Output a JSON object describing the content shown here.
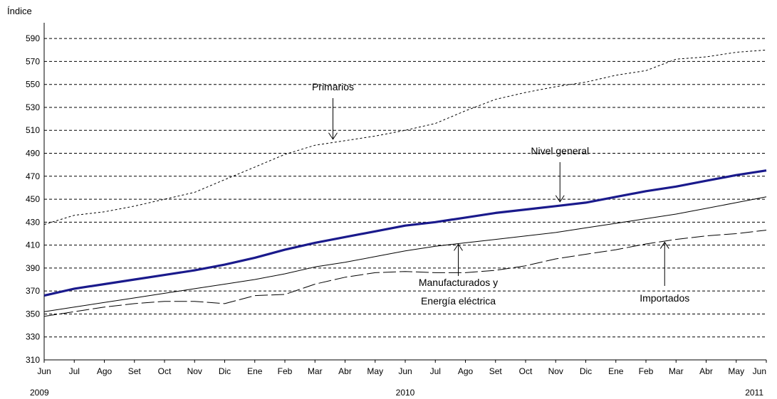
{
  "chart_data": {
    "type": "line",
    "ylabel": "Índice",
    "ylim": [
      310,
      600
    ],
    "yticks": [
      310,
      330,
      350,
      370,
      390,
      410,
      430,
      450,
      470,
      490,
      510,
      530,
      550,
      570,
      590
    ],
    "grid": "horizontal dashed",
    "x": [
      "Jun",
      "Jul",
      "Ago",
      "Set",
      "Oct",
      "Nov",
      "Dic",
      "Ene",
      "Feb",
      "Mar",
      "Abr",
      "May",
      "Jun",
      "Jul",
      "Ago",
      "Set",
      "Oct",
      "Nov",
      "Dic",
      "Ene",
      "Feb",
      "Mar",
      "Abr",
      "May",
      "Jun"
    ],
    "years": [
      {
        "label": "2009",
        "index": 0
      },
      {
        "label": "2010",
        "index": 12
      },
      {
        "label": "2011",
        "index": 24
      }
    ],
    "series": [
      {
        "name": "Primarios",
        "color": "#000000",
        "style": "dotted",
        "values": [
          428,
          436,
          439,
          444,
          450,
          456,
          467,
          478,
          489,
          497,
          501,
          505,
          510,
          516,
          527,
          537,
          543,
          548,
          552,
          558,
          562,
          572,
          574,
          578,
          580
        ]
      },
      {
        "name": "Nivel general",
        "color": "#1a1a8c",
        "style": "thick",
        "values": [
          366,
          372,
          376,
          380,
          384,
          388,
          393,
          399,
          406,
          412,
          417,
          422,
          427,
          430,
          434,
          438,
          441,
          444,
          447,
          452,
          457,
          461,
          466,
          471,
          475
        ]
      },
      {
        "name": "Manufacturados y Energía eléctrica",
        "color": "#000000",
        "style": "solid",
        "values": [
          352,
          356,
          360,
          364,
          368,
          372,
          376,
          380,
          385,
          391,
          395,
          400,
          405,
          409,
          412,
          415,
          418,
          421,
          425,
          429,
          433,
          437,
          442,
          447,
          452
        ]
      },
      {
        "name": "Importados",
        "color": "#000000",
        "style": "longdash",
        "values": [
          348,
          352,
          356,
          359,
          361,
          361,
          359,
          366,
          367,
          376,
          382,
          386,
          387,
          386,
          386,
          388,
          392,
          398,
          402,
          406,
          411,
          415,
          418,
          420,
          423
        ]
      }
    ],
    "annotations": [
      {
        "label": "Primarios",
        "series": "Primarios",
        "at_index": 10,
        "position": "above"
      },
      {
        "label": "Nivel general",
        "series": "Nivel general",
        "at_index": 17,
        "position": "above"
      },
      {
        "label_lines": [
          "Manufacturados y",
          "Energía eléctrica"
        ],
        "series": "Manufacturados y Energía eléctrica",
        "at_index": 14,
        "position": "below"
      },
      {
        "label": "Importados",
        "series": "Importados",
        "at_index": 21,
        "position": "below"
      }
    ]
  }
}
